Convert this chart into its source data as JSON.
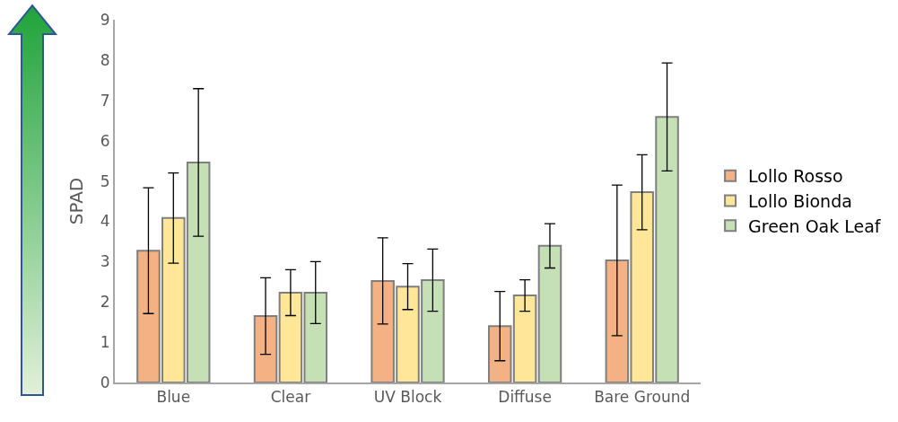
{
  "chart_data": {
    "type": "bar",
    "ylabel": "SPAD",
    "categories": [
      "Blue",
      "Clear",
      "UV Block",
      "Diffuse",
      "Bare Ground"
    ],
    "series": [
      {
        "name": "Lollo Rosso",
        "color": "#f4b183",
        "values": [
          3.27,
          1.65,
          2.52,
          1.4,
          3.03
        ],
        "errors": [
          1.56,
          0.95,
          1.07,
          0.86,
          1.87
        ]
      },
      {
        "name": "Lollo Bionda",
        "color": "#ffe699",
        "values": [
          4.08,
          2.23,
          2.38,
          2.16,
          4.72
        ],
        "errors": [
          1.12,
          0.57,
          0.57,
          0.39,
          0.93
        ]
      },
      {
        "name": "Green Oak Leaf",
        "color": "#c5e0b4",
        "values": [
          5.46,
          2.23,
          2.54,
          3.39,
          6.59
        ],
        "errors": [
          1.83,
          0.77,
          0.77,
          0.55,
          1.34
        ]
      }
    ],
    "ylim": [
      0,
      9
    ],
    "yticks": [
      0,
      1,
      2,
      3,
      4,
      5,
      6,
      7,
      8,
      9
    ],
    "grid": false,
    "legend": "right"
  }
}
